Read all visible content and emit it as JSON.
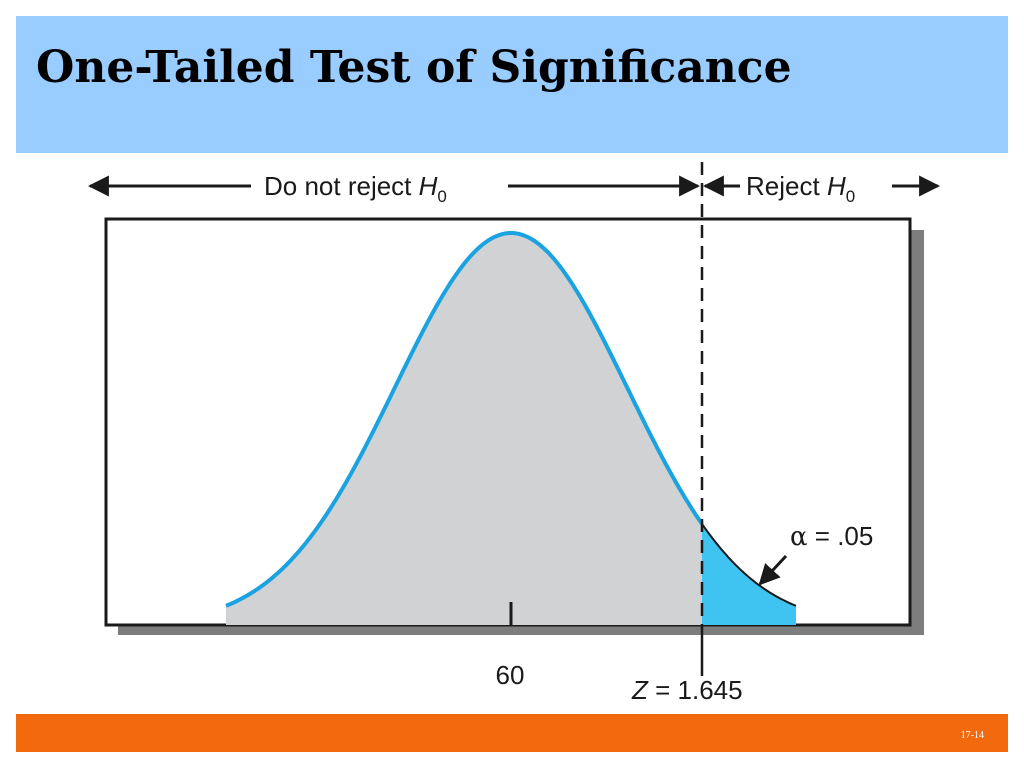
{
  "slide": {
    "title": "One-Tailed Test of Significance",
    "page_number": "17-14"
  },
  "diagram": {
    "region_left_label": "Do not reject",
    "region_right_label": "Reject",
    "hypothesis_symbol": "H",
    "hypothesis_subscript": "0",
    "mean_label": "60",
    "critical_var": "Z",
    "critical_value": "= 1.645",
    "alpha_symbol": "α",
    "alpha_value": "= .05"
  },
  "colors": {
    "title_band": "#99ccff",
    "footer_band": "#f2690e",
    "curve_stroke": "#1aa3e0",
    "curve_fill": "#d1d2d4",
    "rejection_fill": "#3fc3f0",
    "shadow": "#7d7d7d"
  }
}
